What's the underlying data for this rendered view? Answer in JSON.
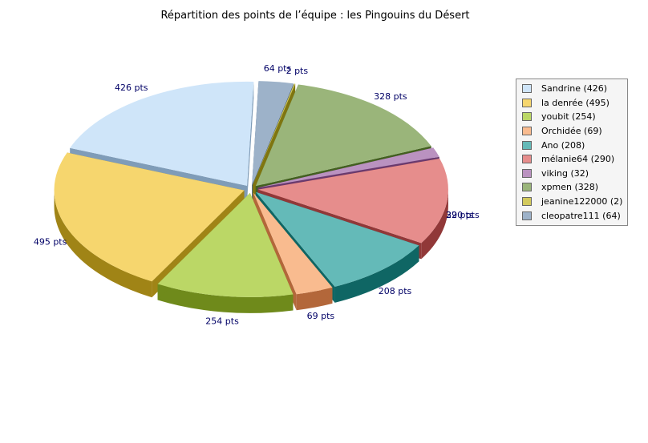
{
  "chart_data": {
    "type": "pie",
    "title": "Répartition des points de l’équipe : les Pingouins du Désert",
    "series": [
      {
        "name": "Sandrine",
        "value": 426,
        "label": "426 pts",
        "legend": "Sandrine (426)",
        "color": "#cfe5f9",
        "side": "#7f9cb8"
      },
      {
        "name": "la denrée",
        "value": 495,
        "label": "495 pts",
        "legend": "la denrée (495)",
        "color": "#f6d66e",
        "side": "#a08416"
      },
      {
        "name": "youbit",
        "value": 254,
        "label": "254 pts",
        "legend": "youbit (254)",
        "color": "#bbd766",
        "side": "#6f8a1b"
      },
      {
        "name": "Orchidée",
        "value": 69,
        "label": "69 pts",
        "legend": "Orchidée (69)",
        "color": "#f9bb8f",
        "side": "#b3673a"
      },
      {
        "name": "Ano",
        "value": 208,
        "label": "208 pts",
        "legend": "Ano (208)",
        "color": "#64bab8",
        "side": "#0f6664"
      },
      {
        "name": "mélanie64",
        "value": 290,
        "label": "290 pts",
        "legend": "mélanie64 (290)",
        "color": "#e68d8c",
        "side": "#913838"
      },
      {
        "name": "viking",
        "value": 32,
        "label": "32 pts",
        "legend": "viking (32)",
        "color": "#ba92c0",
        "side": "#6a3a6e"
      },
      {
        "name": "xpmen",
        "value": 328,
        "label": "328 pts",
        "legend": "xpmen (328)",
        "color": "#9ab57a",
        "side": "#436020"
      },
      {
        "name": "jeanine122000",
        "value": 2,
        "label": "2 pts",
        "legend": "jeanine122000 (2)",
        "color": "#d2c95c",
        "side": "#7f7510"
      },
      {
        "name": "cleopatre111",
        "value": 64,
        "label": "64 pts",
        "legend": "cleopatre111 (64)",
        "color": "#9db2c9",
        "side": "#4e6784"
      }
    ],
    "legend_position": "right",
    "chart_style": "3d-exploded"
  }
}
